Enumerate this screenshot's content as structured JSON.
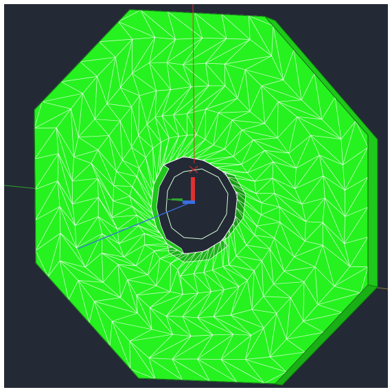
{
  "viewport": {
    "background": "#232a35",
    "frame_color": "#ffffff"
  },
  "model": {
    "shape": "octagonal-washer",
    "mesh": "triangulated-wireframe",
    "face_color": "#26f21f",
    "side_color": "#1fc81a",
    "inner_color": "#15a014",
    "edge_color": "#ffffff"
  },
  "axes": {
    "x_axis_color": "#3a6ee0",
    "y_axis_color": "#e03030",
    "z_axis_color": "#2ea52e",
    "grid_line_color": "#8a7a3a",
    "icon": "ucs-icon"
  }
}
